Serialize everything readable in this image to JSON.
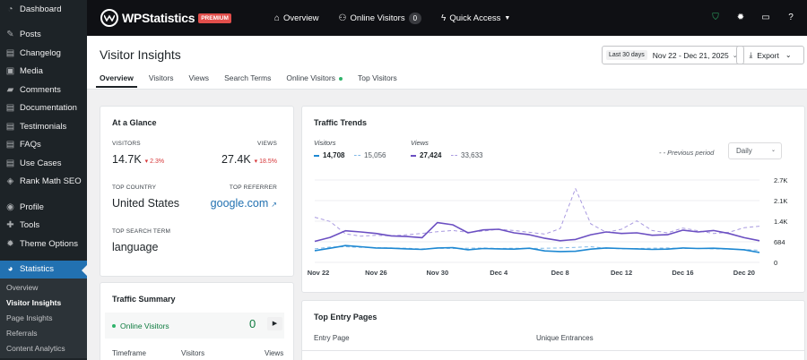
{
  "sidebar": {
    "items": [
      {
        "label": "Dashboard",
        "icon": "dashboard-icon",
        "glyph": "◔"
      },
      {
        "label": "Posts",
        "icon": "pin-icon",
        "glyph": "✎"
      },
      {
        "label": "Changelog",
        "icon": "changelog-icon",
        "glyph": "▤"
      },
      {
        "label": "Media",
        "icon": "media-icon",
        "glyph": "▣"
      },
      {
        "label": "Comments",
        "icon": "comments-icon",
        "glyph": "▰"
      },
      {
        "label": "Documentation",
        "icon": "documentation-icon",
        "glyph": "▤"
      },
      {
        "label": "Testimonials",
        "icon": "testimonials-icon",
        "glyph": "▤"
      },
      {
        "label": "FAQs",
        "icon": "faqs-icon",
        "glyph": "▤"
      },
      {
        "label": "Use Cases",
        "icon": "use-cases-icon",
        "glyph": "▤"
      },
      {
        "label": "Rank Math SEO",
        "icon": "rank-math-icon",
        "glyph": "◈"
      },
      {
        "label": "Profile",
        "icon": "profile-icon",
        "glyph": "◉"
      },
      {
        "label": "Tools",
        "icon": "tools-icon",
        "glyph": "✚"
      },
      {
        "label": "Theme Options",
        "icon": "gear-icon",
        "glyph": "✹"
      },
      {
        "label": "Statistics",
        "icon": "statistics-icon",
        "glyph": "◕"
      }
    ],
    "submenu": [
      "Overview",
      "Visitor Insights",
      "Page Insights",
      "Referrals",
      "Content Analytics"
    ]
  },
  "topbar": {
    "brand": "WPStatistics",
    "premium": "PREMIUM",
    "overview": "Overview",
    "online_visitors": "Online Visitors",
    "online_count": "0",
    "quick_access": "Quick Access"
  },
  "header": {
    "title": "Visitor Insights",
    "date_tag": "Last 30 days",
    "date_range": "Nov 22 - Dec 21, 2025",
    "export": "Export",
    "tabs": [
      "Overview",
      "Visitors",
      "Views",
      "Search Terms",
      "Online Visitors",
      "Top Visitors"
    ]
  },
  "glance": {
    "title": "At a Glance",
    "visitors_label": "VISITORS",
    "visitors_value": "14.7K",
    "visitors_delta": "2.3%",
    "views_label": "VIEWS",
    "views_value": "27.4K",
    "views_delta": "18.5%",
    "country_label": "TOP COUNTRY",
    "country_value": "United States",
    "referrer_label": "TOP REFERRER",
    "referrer_value": "google.com",
    "search_label": "TOP SEARCH TERM",
    "search_value": "language"
  },
  "summary": {
    "title": "Traffic Summary",
    "online_label": "Online Visitors",
    "online_value": "0",
    "headers": [
      "Timeframe",
      "Visitors",
      "Views"
    ]
  },
  "trends": {
    "title": "Traffic Trends",
    "visitors_label": "Visitors",
    "views_label": "Views",
    "visitors_current": "14,708",
    "visitors_previous": "15,056",
    "views_current": "27,424",
    "views_previous": "33,633",
    "previous_period": "Previous period",
    "granularity": "Daily"
  },
  "entry_pages": {
    "title": "Top Entry Pages",
    "headers": [
      "Entry Page",
      "Unique Entrances"
    ]
  },
  "chart_data": {
    "type": "line",
    "x": [
      "Nov 22",
      "Nov 23",
      "Nov 24",
      "Nov 25",
      "Nov 26",
      "Nov 27",
      "Nov 28",
      "Nov 29",
      "Nov 30",
      "Dec 1",
      "Dec 2",
      "Dec 3",
      "Dec 4",
      "Dec 5",
      "Dec 6",
      "Dec 7",
      "Dec 8",
      "Dec 9",
      "Dec 10",
      "Dec 11",
      "Dec 12",
      "Dec 13",
      "Dec 14",
      "Dec 15",
      "Dec 16",
      "Dec 17",
      "Dec 18",
      "Dec 19",
      "Dec 20",
      "Dec 21"
    ],
    "tick_labels": [
      "Nov 22",
      "Nov 26",
      "Nov 30",
      "Dec 4",
      "Dec 8",
      "Dec 12",
      "Dec 16",
      "Dec 20"
    ],
    "y_ticks": [
      "2.7K",
      "2.1K",
      "1.4K",
      "684",
      "0"
    ],
    "ylim": [
      0,
      2736
    ],
    "series": [
      {
        "name": "Visitors",
        "color": "#1e88d2",
        "dashed": false,
        "values": [
          390,
          470,
          560,
          520,
          480,
          470,
          450,
          430,
          480,
          490,
          420,
          460,
          450,
          440,
          470,
          380,
          360,
          370,
          440,
          480,
          460,
          450,
          430,
          440,
          480,
          460,
          470,
          450,
          420,
          330
        ]
      },
      {
        "name": "Views",
        "color": "#6b4fc2",
        "dashed": false,
        "values": [
          700,
          830,
          1050,
          1010,
          960,
          880,
          860,
          820,
          1320,
          1250,
          980,
          1080,
          1100,
          980,
          920,
          800,
          720,
          760,
          920,
          1010,
          960,
          980,
          900,
          920,
          1070,
          1010,
          1060,
          960,
          820,
          720
        ]
      },
      {
        "name": "Visitors",
        "color": "#7fb8e6",
        "dashed": true,
        "values": [
          450,
          510,
          520,
          500,
          490,
          480,
          470,
          450,
          470,
          460,
          470,
          480,
          460,
          470,
          460,
          470,
          480,
          500,
          520,
          470,
          450,
          460,
          470,
          480,
          460,
          470,
          450,
          440,
          430,
          400
        ]
      },
      {
        "name": "Views",
        "color": "#a99ae0",
        "dashed": true,
        "values": [
          1500,
          1360,
          950,
          870,
          900,
          880,
          920,
          960,
          1020,
          1060,
          1000,
          1040,
          1100,
          1060,
          1000,
          940,
          1120,
          2450,
          1280,
          1000,
          1100,
          1380,
          1060,
          980,
          1140,
          1050,
          960,
          1000,
          1150,
          1200
        ]
      }
    ]
  },
  "colors": {
    "accent": "#2271b1",
    "topbar": "#0f1014",
    "sidebar": "#1d2327",
    "negative": "#d63638",
    "online": "#2fb36a"
  }
}
